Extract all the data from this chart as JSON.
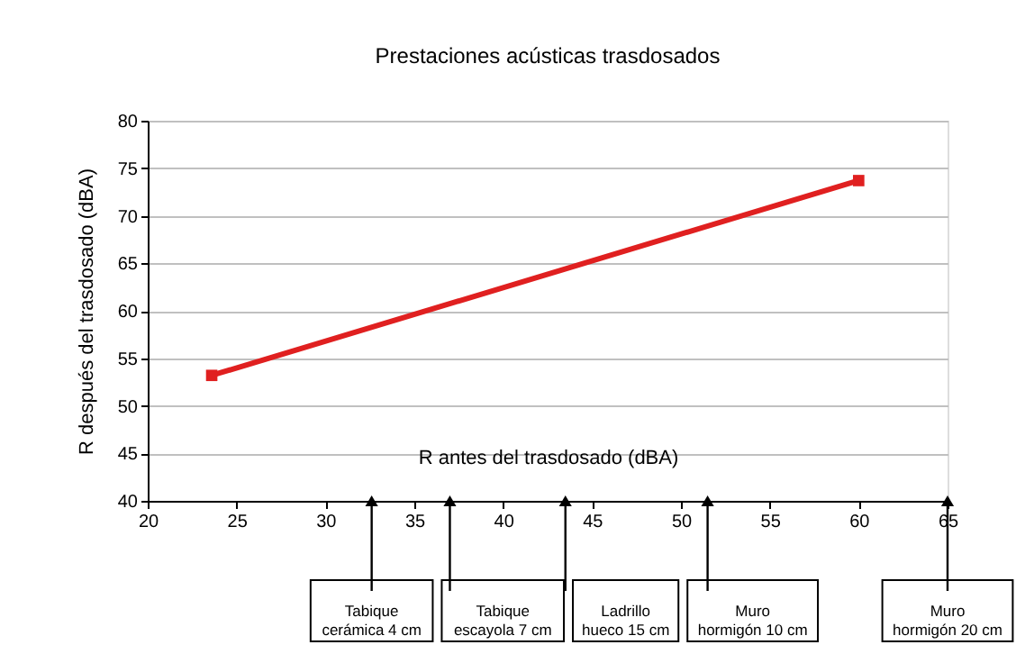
{
  "chart_data": {
    "type": "line",
    "title": "Prestaciones acústicas trasdosados",
    "xlabel": "R antes del trasdosado  (dBA)",
    "ylabel": "R después del trasdosado  (dBA)",
    "xlim": [
      20,
      65
    ],
    "xticks": [
      20,
      25,
      30,
      35,
      40,
      45,
      50,
      55,
      60,
      65
    ],
    "ylim": [
      40,
      80
    ],
    "yticks": [
      40,
      45,
      50,
      55,
      60,
      65,
      70,
      75,
      80
    ],
    "grid": "y",
    "marker": "square",
    "line_style": "solid",
    "legend": false,
    "series": [
      {
        "color": "#e02020",
        "x": [
          23.6,
          60
        ],
        "values": [
          53.2,
          73.7
        ]
      }
    ],
    "annotations": [
      {
        "text": "Tabique cerámica 4 cm",
        "x": 32.6,
        "y": 40
      },
      {
        "text": "Tabique escayola 7 cm",
        "x": 37,
        "y": 40
      },
      {
        "text": "Ladrillo hueco 15 cm",
        "x": 43.5,
        "y": 40
      },
      {
        "text": "Muro hormigón 10 cm",
        "x": 51.5,
        "y": 40
      },
      {
        "text": "Muro hormigón 20 cm",
        "x": 65,
        "y": 40
      }
    ]
  }
}
